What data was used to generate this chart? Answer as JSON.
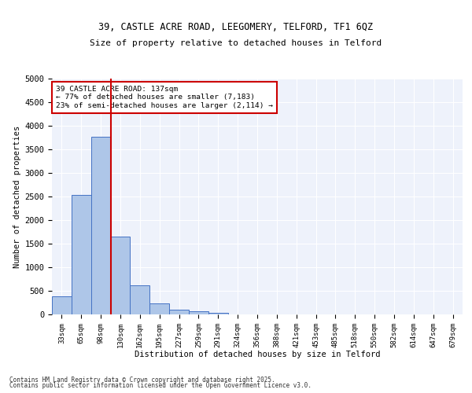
{
  "title1": "39, CASTLE ACRE ROAD, LEEGOMERY, TELFORD, TF1 6QZ",
  "title2": "Size of property relative to detached houses in Telford",
  "xlabel": "Distribution of detached houses by size in Telford",
  "ylabel": "Number of detached properties",
  "categories": [
    "33sqm",
    "65sqm",
    "98sqm",
    "130sqm",
    "162sqm",
    "195sqm",
    "227sqm",
    "259sqm",
    "291sqm",
    "324sqm",
    "356sqm",
    "388sqm",
    "421sqm",
    "453sqm",
    "485sqm",
    "518sqm",
    "550sqm",
    "582sqm",
    "614sqm",
    "647sqm",
    "679sqm"
  ],
  "values": [
    380,
    2530,
    3760,
    1650,
    610,
    230,
    105,
    60,
    30,
    0,
    0,
    0,
    0,
    0,
    0,
    0,
    0,
    0,
    0,
    0,
    0
  ],
  "bar_color": "#aec6e8",
  "bar_edge_color": "#4472c4",
  "vline_index": 3,
  "vline_color": "#cc0000",
  "ylim": [
    0,
    5000
  ],
  "yticks": [
    0,
    500,
    1000,
    1500,
    2000,
    2500,
    3000,
    3500,
    4000,
    4500,
    5000
  ],
  "annotation_text": "39 CASTLE ACRE ROAD: 137sqm\n← 77% of detached houses are smaller (7,183)\n23% of semi-detached houses are larger (2,114) →",
  "annotation_box_color": "#cc0000",
  "background_color": "#eef2fb",
  "grid_color": "#ffffff",
  "footer1": "Contains HM Land Registry data © Crown copyright and database right 2025.",
  "footer2": "Contains public sector information licensed under the Open Government Licence v3.0."
}
